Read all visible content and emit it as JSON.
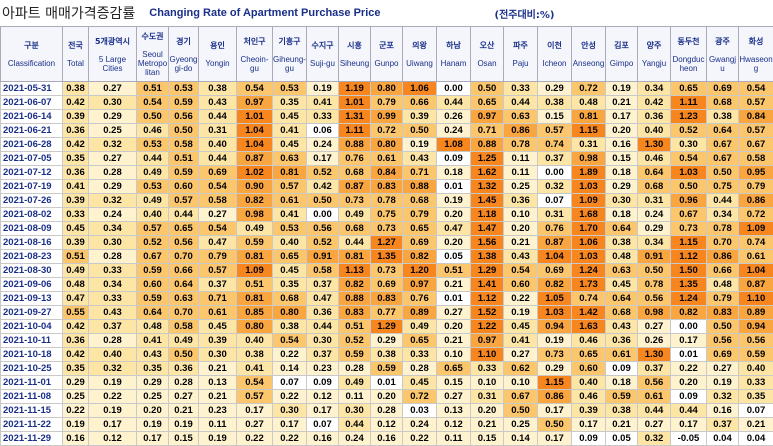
{
  "header": {
    "title_ko": "아파트 매매가격증감률",
    "title_en": "Changing Rate of Apartment Purchase Price",
    "unit": "(전주대비:%)"
  },
  "table": {
    "columns": [
      {
        "ko": "구분",
        "en": "Classification"
      },
      {
        "ko": "전국",
        "en": "Total"
      },
      {
        "ko": "5개광역시",
        "en": "5 Large Cities"
      },
      {
        "ko": "수도권",
        "en": "Seoul Metropolitan"
      },
      {
        "ko": "경기",
        "en": "Gyeonggi-do"
      },
      {
        "ko": "용인",
        "en": "Yongin"
      },
      {
        "ko": "처인구",
        "en": "Cheoin-gu"
      },
      {
        "ko": "기흥구",
        "en": "Giheung-gu"
      },
      {
        "ko": "수지구",
        "en": "Suji-gu"
      },
      {
        "ko": "시흥",
        "en": "Siheung"
      },
      {
        "ko": "군포",
        "en": "Gunpo"
      },
      {
        "ko": "의왕",
        "en": "Uiwang"
      },
      {
        "ko": "하남",
        "en": "Hanam"
      },
      {
        "ko": "오산",
        "en": "Osan"
      },
      {
        "ko": "파주",
        "en": "Paju"
      },
      {
        "ko": "이천",
        "en": "Icheon"
      },
      {
        "ko": "안성",
        "en": "Anseong"
      },
      {
        "ko": "김포",
        "en": "Gimpo"
      },
      {
        "ko": "양주",
        "en": "Yangju"
      },
      {
        "ko": "동두천",
        "en": "Dongducheon"
      },
      {
        "ko": "광주",
        "en": "Gwangju"
      },
      {
        "ko": "화성",
        "en": "Hwaseong"
      }
    ],
    "rows": [
      [
        "2021-05-31",
        "0.38",
        "0.27",
        "0.51",
        "0.53",
        "0.38",
        "0.54",
        "0.53",
        "0.19",
        "1.19",
        "0.80",
        "1.06",
        "0.00",
        "0.50",
        "0.33",
        "0.29",
        "0.72",
        "0.19",
        "0.34",
        "0.65",
        "0.69",
        "0.54"
      ],
      [
        "2021-06-07",
        "0.42",
        "0.30",
        "0.54",
        "0.59",
        "0.43",
        "0.97",
        "0.35",
        "0.41",
        "1.01",
        "0.79",
        "0.66",
        "0.44",
        "0.65",
        "0.44",
        "0.38",
        "0.48",
        "0.21",
        "0.42",
        "1.11",
        "0.68",
        "0.57"
      ],
      [
        "2021-06-14",
        "0.39",
        "0.29",
        "0.50",
        "0.56",
        "0.44",
        "1.01",
        "0.45",
        "0.33",
        "1.31",
        "0.99",
        "0.39",
        "0.26",
        "0.97",
        "0.63",
        "0.15",
        "0.81",
        "0.17",
        "0.36",
        "1.23",
        "0.38",
        "0.84"
      ],
      [
        "2021-06-21",
        "0.36",
        "0.25",
        "0.46",
        "0.50",
        "0.31",
        "1.04",
        "0.41",
        "0.06",
        "1.11",
        "0.72",
        "0.50",
        "0.24",
        "0.71",
        "0.86",
        "0.57",
        "1.15",
        "0.20",
        "0.40",
        "0.52",
        "0.64",
        "0.57"
      ],
      [
        "2021-06-28",
        "0.42",
        "0.32",
        "0.53",
        "0.58",
        "0.40",
        "1.04",
        "0.45",
        "0.24",
        "0.88",
        "0.80",
        "0.19",
        "1.08",
        "0.88",
        "0.78",
        "0.74",
        "0.31",
        "0.16",
        "1.30",
        "0.30",
        "0.67",
        "0.67"
      ],
      [
        "2021-07-05",
        "0.35",
        "0.27",
        "0.44",
        "0.51",
        "0.44",
        "0.87",
        "0.63",
        "0.17",
        "0.76",
        "0.61",
        "0.43",
        "0.09",
        "1.25",
        "0.11",
        "0.37",
        "0.98",
        "0.15",
        "0.46",
        "0.54",
        "0.67",
        "0.58"
      ],
      [
        "2021-07-12",
        "0.36",
        "0.28",
        "0.49",
        "0.59",
        "0.69",
        "1.02",
        "0.81",
        "0.52",
        "0.68",
        "0.84",
        "0.71",
        "0.18",
        "1.62",
        "0.11",
        "0.00",
        "1.89",
        "0.18",
        "0.64",
        "1.03",
        "0.50",
        "0.95"
      ],
      [
        "2021-07-19",
        "0.41",
        "0.29",
        "0.53",
        "0.60",
        "0.54",
        "0.90",
        "0.57",
        "0.42",
        "0.87",
        "0.83",
        "0.88",
        "0.01",
        "1.32",
        "0.25",
        "0.32",
        "1.03",
        "0.29",
        "0.68",
        "0.50",
        "0.75",
        "0.79"
      ],
      [
        "2021-07-26",
        "0.39",
        "0.32",
        "0.49",
        "0.57",
        "0.58",
        "0.82",
        "0.61",
        "0.50",
        "0.73",
        "0.78",
        "0.68",
        "0.19",
        "1.45",
        "0.36",
        "0.07",
        "1.09",
        "0.30",
        "0.31",
        "0.96",
        "0.44",
        "0.86"
      ],
      [
        "2021-08-02",
        "0.33",
        "0.24",
        "0.40",
        "0.44",
        "0.27",
        "0.98",
        "0.41",
        "0.00",
        "0.49",
        "0.75",
        "0.79",
        "0.20",
        "1.18",
        "0.10",
        "0.31",
        "1.68",
        "0.18",
        "0.24",
        "0.67",
        "0.34",
        "0.72"
      ],
      [
        "2021-08-09",
        "0.45",
        "0.34",
        "0.57",
        "0.65",
        "0.54",
        "0.49",
        "0.53",
        "0.56",
        "0.68",
        "0.73",
        "0.65",
        "0.47",
        "1.47",
        "0.20",
        "0.76",
        "1.70",
        "0.64",
        "0.29",
        "0.73",
        "0.78",
        "1.09"
      ],
      [
        "2021-08-16",
        "0.39",
        "0.30",
        "0.52",
        "0.56",
        "0.47",
        "0.59",
        "0.40",
        "0.52",
        "0.44",
        "1.27",
        "0.69",
        "0.20",
        "1.56",
        "0.21",
        "0.87",
        "1.06",
        "0.38",
        "0.34",
        "1.15",
        "0.70",
        "0.74"
      ],
      [
        "2021-08-23",
        "0.51",
        "0.28",
        "0.67",
        "0.70",
        "0.79",
        "0.81",
        "0.65",
        "0.91",
        "0.81",
        "1.35",
        "0.82",
        "0.05",
        "1.38",
        "0.43",
        "1.04",
        "1.03",
        "0.48",
        "0.91",
        "1.12",
        "0.86",
        "0.61"
      ],
      [
        "2021-08-30",
        "0.49",
        "0.33",
        "0.59",
        "0.66",
        "0.57",
        "1.09",
        "0.45",
        "0.58",
        "1.13",
        "0.73",
        "1.20",
        "0.51",
        "1.29",
        "0.54",
        "0.69",
        "1.24",
        "0.63",
        "0.50",
        "1.50",
        "0.66",
        "1.04"
      ],
      [
        "2021-09-06",
        "0.48",
        "0.34",
        "0.60",
        "0.64",
        "0.37",
        "0.51",
        "0.35",
        "0.37",
        "0.82",
        "0.69",
        "0.97",
        "0.21",
        "1.41",
        "0.60",
        "0.82",
        "1.73",
        "0.45",
        "0.78",
        "1.35",
        "0.48",
        "0.87"
      ],
      [
        "2021-09-13",
        "0.47",
        "0.33",
        "0.59",
        "0.63",
        "0.71",
        "0.81",
        "0.68",
        "0.47",
        "0.88",
        "0.83",
        "0.76",
        "0.01",
        "1.12",
        "0.22",
        "1.05",
        "0.74",
        "0.64",
        "0.56",
        "1.24",
        "0.79",
        "1.10"
      ],
      [
        "2021-09-27",
        "0.55",
        "0.43",
        "0.64",
        "0.70",
        "0.61",
        "0.85",
        "0.80",
        "0.36",
        "0.83",
        "0.77",
        "0.89",
        "0.27",
        "1.52",
        "0.19",
        "1.03",
        "1.42",
        "0.68",
        "0.98",
        "0.82",
        "0.83",
        "0.89"
      ],
      [
        "2021-10-04",
        "0.42",
        "0.37",
        "0.48",
        "0.58",
        "0.45",
        "0.80",
        "0.38",
        "0.44",
        "0.51",
        "1.29",
        "0.49",
        "0.20",
        "1.22",
        "0.45",
        "0.94",
        "1.63",
        "0.43",
        "0.27",
        "0.00",
        "0.50",
        "0.94"
      ],
      [
        "2021-10-11",
        "0.36",
        "0.28",
        "0.41",
        "0.49",
        "0.39",
        "0.40",
        "0.54",
        "0.30",
        "0.52",
        "0.29",
        "0.65",
        "0.21",
        "0.97",
        "0.41",
        "0.19",
        "0.46",
        "0.36",
        "0.26",
        "0.17",
        "0.56",
        "0.56"
      ],
      [
        "2021-10-18",
        "0.42",
        "0.40",
        "0.43",
        "0.50",
        "0.30",
        "0.38",
        "0.22",
        "0.37",
        "0.59",
        "0.38",
        "0.33",
        "0.10",
        "1.10",
        "0.27",
        "0.73",
        "0.65",
        "0.61",
        "1.30",
        "0.01",
        "0.69",
        "0.59"
      ],
      [
        "2021-10-25",
        "0.35",
        "0.32",
        "0.35",
        "0.36",
        "0.21",
        "0.41",
        "0.14",
        "0.23",
        "0.28",
        "0.59",
        "0.28",
        "0.65",
        "0.33",
        "0.62",
        "0.29",
        "0.60",
        "0.09",
        "0.37",
        "0.22",
        "0.27",
        "0.40"
      ],
      [
        "2021-11-01",
        "0.29",
        "0.19",
        "0.29",
        "0.28",
        "0.13",
        "0.54",
        "0.07",
        "0.09",
        "0.49",
        "0.01",
        "0.45",
        "0.15",
        "0.10",
        "0.10",
        "1.15",
        "0.40",
        "0.18",
        "0.56",
        "0.20",
        "0.19",
        "0.33"
      ],
      [
        "2021-11-08",
        "0.25",
        "0.22",
        "0.25",
        "0.27",
        "0.21",
        "0.57",
        "0.22",
        "0.12",
        "0.11",
        "0.20",
        "0.72",
        "0.27",
        "0.31",
        "0.67",
        "0.86",
        "0.46",
        "0.59",
        "0.61",
        "0.09",
        "0.32",
        "0.35"
      ],
      [
        "2021-11-15",
        "0.22",
        "0.19",
        "0.20",
        "0.21",
        "0.23",
        "0.17",
        "0.30",
        "0.17",
        "0.30",
        "0.28",
        "0.03",
        "0.13",
        "0.20",
        "0.50",
        "0.17",
        "0.39",
        "0.38",
        "0.44",
        "0.44",
        "0.16",
        "0.07"
      ],
      [
        "2021-11-22",
        "0.19",
        "0.17",
        "0.19",
        "0.19",
        "0.11",
        "0.27",
        "0.17",
        "0.07",
        "0.44",
        "0.12",
        "0.24",
        "0.12",
        "0.21",
        "0.25",
        "0.50",
        "0.17",
        "0.21",
        "0.27",
        "0.17",
        "0.37",
        "0.21"
      ],
      [
        "2021-11-29",
        "0.16",
        "0.12",
        "0.17",
        "0.15",
        "0.19",
        "0.22",
        "0.22",
        "0.16",
        "0.24",
        "0.16",
        "0.22",
        "0.11",
        "0.15",
        "0.14",
        "0.17",
        "0.09",
        "0.05",
        "0.32",
        "-0.05",
        "0.04",
        "0.04"
      ]
    ]
  }
}
